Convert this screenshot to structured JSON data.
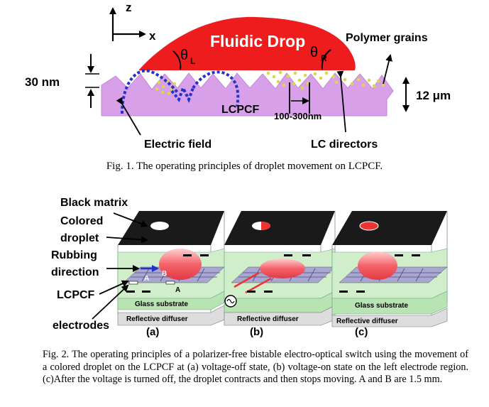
{
  "figure1": {
    "axis_z": "z",
    "axis_x": "x",
    "drop_label": "Fluidic Drop",
    "theta_left": "θ",
    "theta_left_sub": "L",
    "theta_right": "θ",
    "theta_right_sub": "R",
    "polymer_grains": "Polymer grains",
    "thickness_30": "30 nm",
    "thickness_12": "12 μm",
    "lcpcf": "LCPCF",
    "spacing": "100-300nm",
    "electric_field": "Electric field",
    "lc_directors": "LC directors",
    "caption": "Fig. 1. The operating principles of droplet movement on LCPCF."
  },
  "figure2": {
    "labels": {
      "black_matrix": "Black matrix",
      "colored": "Colored",
      "droplet": "droplet",
      "rubbing": "Rubbing",
      "direction": "direction",
      "lcpcf": "LCPCF",
      "electrodes": "electrodes"
    },
    "panel_a": {
      "glass": "Glass substrate",
      "diffuser": "Reflective diffuser",
      "tag": "(a)",
      "mark_a": "A",
      "mark_a2": "A",
      "mark_b": "B"
    },
    "panel_b": {
      "diffuser": "Reflective diffuser",
      "tag": "(b)"
    },
    "panel_c": {
      "glass": "Glass substrate",
      "diffuser": "Reflective diffuser",
      "tag": "(c)"
    },
    "caption": "Fig. 2. The operating principles of a polarizer-free bistable electro-optical switch using the movement of a colored droplet on the LCPCF at (a) voltage-off state, (b) voltage-on state on the left electrode region. (c)After the voltage is turned off, the droplet contracts and then stops moving. A and B are 1.5 mm."
  }
}
